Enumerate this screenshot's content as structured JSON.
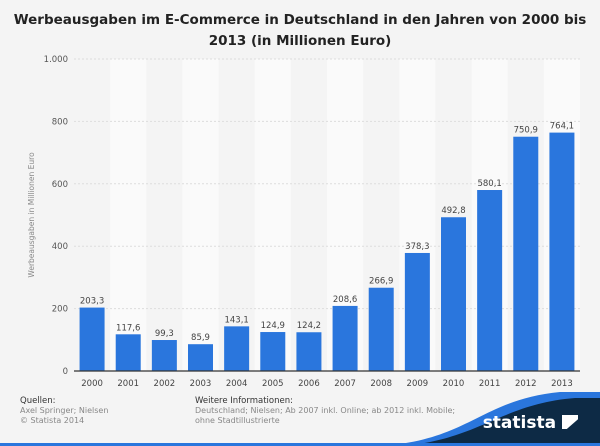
{
  "chart_data": {
    "type": "bar",
    "title": "Werbeausgaben im E-Commerce in Deutschland in den Jahren von 2000 bis 2013 (in Millionen Euro)",
    "ylabel": "Werbeausgaben in Millionen Euro",
    "xlabel": "",
    "categories": [
      "2000",
      "2001",
      "2002",
      "2003",
      "2004",
      "2005",
      "2006",
      "2007",
      "2008",
      "2009",
      "2010",
      "2011",
      "2012",
      "2013"
    ],
    "values": [
      203.3,
      117.6,
      99.3,
      85.9,
      143.1,
      124.9,
      124.2,
      208.6,
      266.9,
      378.3,
      492.8,
      580.1,
      750.9,
      764.1
    ],
    "data_labels": [
      "203,3",
      "117,6",
      "99,3",
      "85,9",
      "143,1",
      "124,9",
      "124,2",
      "208,6",
      "266,9",
      "378,3",
      "492,8",
      "580,1",
      "750,9",
      "764,1"
    ],
    "ylim": [
      0,
      1000
    ],
    "yticks": [
      0,
      200,
      400,
      600,
      800,
      1000
    ],
    "ytick_labels": [
      "0",
      "200",
      "400",
      "600",
      "800",
      "1.000"
    ],
    "grid": true,
    "bar_color": "#2a76dd"
  },
  "footer": {
    "sources_heading": "Quellen:",
    "sources_line1": "Axel Springer; Nielsen",
    "sources_line2": "© Statista 2014",
    "info_heading": "Weitere Informationen:",
    "info_line1": "Deutschland; Nielsen; Ab 2007 inkl. Online; ab 2012 inkl. Mobile;",
    "info_line2": "ohne Stadtillustrierte",
    "brand": "statista"
  }
}
